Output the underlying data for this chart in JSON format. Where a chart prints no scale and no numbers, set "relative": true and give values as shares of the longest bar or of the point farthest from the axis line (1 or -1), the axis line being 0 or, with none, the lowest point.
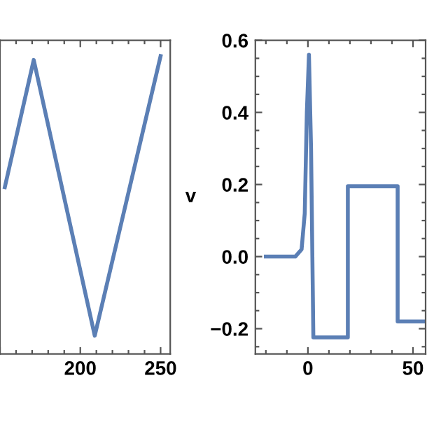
{
  "chart_data": [
    {
      "type": "line",
      "relative": true,
      "x": [
        153,
        171,
        209,
        250
      ],
      "values": [
        0.56,
        0.987,
        0.061,
        1
      ],
      "color": "#5b7fb5",
      "xlim": [
        150,
        256
      ],
      "xticks": [
        {
          "value": 150,
          "label": null
        },
        200,
        250
      ],
      "tick_labels": "x",
      "grid": false,
      "legend": false
    },
    {
      "type": "line",
      "x": [
        -20,
        -6,
        -3,
        -1.5,
        -0.5,
        0.5,
        1.5,
        2.6,
        2.6,
        19,
        19,
        42.7,
        42.7,
        55
      ],
      "values": [
        0,
        0,
        0.02,
        0.12,
        0.4,
        0.56,
        0.3,
        -0.224,
        -0.224,
        -0.224,
        0.195,
        0.195,
        -0.18,
        -0.18
      ],
      "color": "#5b7fb5",
      "ylabel": "v",
      "xlim": [
        -25,
        56
      ],
      "xticks": [
        0,
        50
      ],
      "ylim": [
        -0.27,
        0.6
      ],
      "yticks": [
        {
          "value": -0.2,
          "label": "−0.2"
        },
        {
          "value": 0.0,
          "label": "0.0"
        },
        {
          "value": 0.2,
          "label": "0.2"
        },
        {
          "value": 0.4,
          "label": "0.4"
        },
        {
          "value": 0.6,
          "label": "0.6"
        }
      ],
      "grid": false,
      "legend": false
    }
  ]
}
